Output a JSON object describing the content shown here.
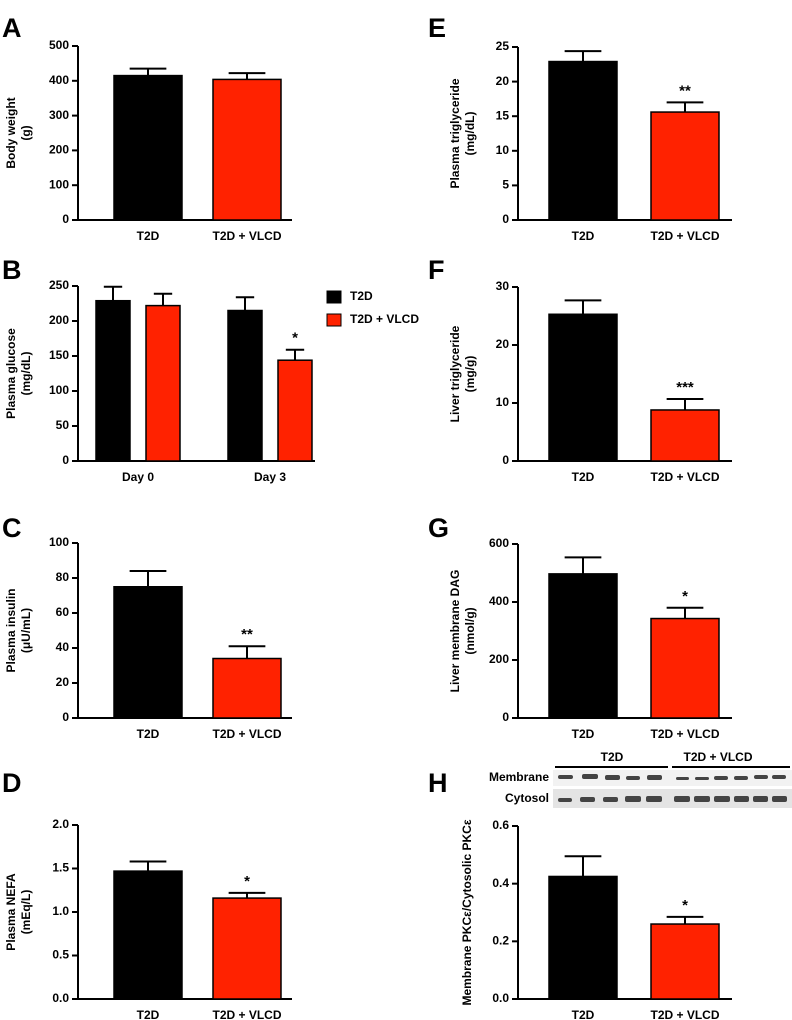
{
  "chart_data": [
    {
      "type": "bar",
      "panel": "A",
      "ylabel": [
        "Body weight",
        "(g)"
      ],
      "categories": [
        "T2D",
        "T2D + VLCD"
      ],
      "values": [
        415,
        404
      ],
      "errors": [
        20,
        18
      ],
      "colors": [
        "#000000",
        "#ff2200"
      ],
      "ylim": [
        0,
        500
      ],
      "yticks": [
        0,
        100,
        200,
        300,
        400,
        500
      ]
    },
    {
      "type": "grouped_bar",
      "panel": "B",
      "ylabel": [
        "Plasma glucose",
        "(mg/dL)"
      ],
      "categories": [
        "Day 0",
        "Day 3"
      ],
      "series": [
        {
          "name": "T2D",
          "color": "#000000",
          "values": [
            229,
            215
          ],
          "errors": [
            20,
            19
          ]
        },
        {
          "name": "T2D + VLCD",
          "color": "#ff2200",
          "values": [
            222,
            144
          ],
          "errors": [
            17,
            15
          ],
          "significance": [
            null,
            "*"
          ]
        }
      ],
      "ylim": [
        0,
        250
      ],
      "yticks": [
        0,
        50,
        100,
        150,
        200,
        250
      ],
      "legend": "right"
    },
    {
      "type": "bar",
      "panel": "C",
      "ylabel": [
        "Plasma insulin",
        "(μU/mL)"
      ],
      "categories": [
        "T2D",
        "T2D + VLCD"
      ],
      "values": [
        75,
        34
      ],
      "errors": [
        9,
        7
      ],
      "significance": [
        null,
        "**"
      ],
      "colors": [
        "#000000",
        "#ff2200"
      ],
      "ylim": [
        0,
        100
      ],
      "yticks": [
        0,
        20,
        40,
        60,
        80,
        100
      ]
    },
    {
      "type": "bar",
      "panel": "D",
      "ylabel": [
        "Plasma NEFA",
        "(mEq/L)"
      ],
      "categories": [
        "T2D",
        "T2D + VLCD"
      ],
      "values": [
        1.47,
        1.16
      ],
      "errors": [
        0.11,
        0.06
      ],
      "significance": [
        null,
        "*"
      ],
      "colors": [
        "#000000",
        "#ff2200"
      ],
      "ylim": [
        0,
        2
      ],
      "yticks": [
        {
          "value": 0,
          "label": "0.0"
        },
        0.5,
        {
          "value": 1,
          "label": "1.0"
        },
        1.5,
        {
          "value": 2,
          "label": "2.0"
        }
      ]
    },
    {
      "type": "bar",
      "panel": "E",
      "ylabel": [
        "Plasma triglyceride",
        "(mg/dL)"
      ],
      "categories": [
        "T2D",
        "T2D + VLCD"
      ],
      "values": [
        22.9,
        15.6
      ],
      "errors": [
        1.5,
        1.4
      ],
      "significance": [
        null,
        "**"
      ],
      "colors": [
        "#000000",
        "#ff2200"
      ],
      "ylim": [
        0,
        25
      ],
      "yticks": [
        0,
        5,
        10,
        15,
        20,
        25
      ]
    },
    {
      "type": "bar",
      "panel": "F",
      "ylabel": [
        "Liver triglyceride",
        "(mg/g)"
      ],
      "categories": [
        "T2D",
        "T2D + VLCD"
      ],
      "values": [
        25.3,
        8.8
      ],
      "errors": [
        2.4,
        1.9
      ],
      "significance": [
        null,
        "***"
      ],
      "colors": [
        "#000000",
        "#ff2200"
      ],
      "ylim": [
        0,
        30
      ],
      "yticks": [
        0,
        10,
        20,
        30
      ]
    },
    {
      "type": "bar",
      "panel": "G",
      "ylabel": [
        "Liver membrane DAG",
        "(nmol/g)"
      ],
      "categories": [
        "T2D",
        "T2D + VLCD"
      ],
      "values": [
        497,
        343
      ],
      "errors": [
        57,
        37
      ],
      "significance": [
        null,
        "*"
      ],
      "colors": [
        "#000000",
        "#ff2200"
      ],
      "ylim": [
        0,
        600
      ],
      "yticks": [
        0,
        200,
        400,
        600
      ]
    },
    {
      "type": "bar",
      "panel": "H",
      "ylabel": [
        "Membrane PKCε/Cytosolic PKCε"
      ],
      "categories": [
        "T2D",
        "T2D + VLCD"
      ],
      "values": [
        0.425,
        0.26
      ],
      "errors": [
        0.07,
        0.025
      ],
      "significance": [
        null,
        "*"
      ],
      "colors": [
        "#000000",
        "#ff2200"
      ],
      "ylim": [
        0,
        0.6
      ],
      "yticks": [
        {
          "value": 0,
          "label": "0.0"
        },
        0.2,
        0.4,
        0.6
      ],
      "blot": {
        "groups": [
          "T2D",
          "T2D + VLCD"
        ],
        "rows": [
          "Membrane",
          "Cytosol"
        ]
      }
    }
  ]
}
